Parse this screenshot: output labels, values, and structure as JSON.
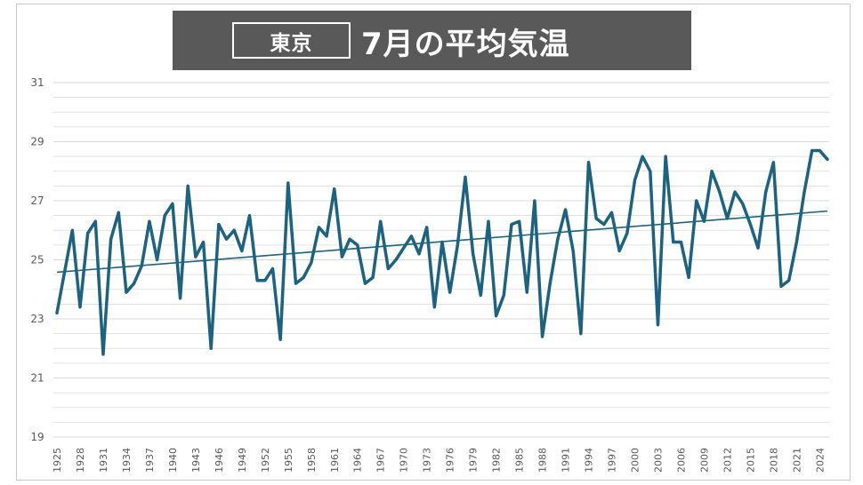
{
  "title": {
    "city": "東京",
    "text": "7月の平均気温"
  },
  "colors": {
    "title_bg": "#595959",
    "line": "#1b6380",
    "trend": "#1b6380",
    "grid": "#d9d9d9",
    "tick_text": "#595959"
  },
  "chart_data": {
    "type": "line",
    "title": "東京 7月の平均気温",
    "xlabel": "",
    "ylabel": "",
    "ylim": [
      19,
      31
    ],
    "y_ticks": [
      19,
      21,
      23,
      25,
      27,
      29,
      31
    ],
    "grid": true,
    "minor_grid_step": 0.5,
    "x_tick_labels": [
      "1925",
      "1928",
      "1931",
      "1934",
      "1937",
      "1940",
      "1943",
      "1946",
      "1949",
      "1952",
      "1955",
      "1958",
      "1961",
      "1964",
      "1967",
      "1970",
      "1973",
      "1976",
      "1979",
      "1982",
      "1985",
      "1988",
      "1991",
      "1994",
      "1997",
      "2000",
      "2003",
      "2006",
      "2009",
      "2012",
      "2015",
      "2018",
      "2021",
      "2024"
    ],
    "x": [
      1925,
      1926,
      1927,
      1928,
      1929,
      1930,
      1931,
      1932,
      1933,
      1934,
      1935,
      1936,
      1937,
      1938,
      1939,
      1940,
      1941,
      1942,
      1943,
      1944,
      1945,
      1946,
      1947,
      1948,
      1949,
      1950,
      1951,
      1952,
      1953,
      1954,
      1955,
      1956,
      1957,
      1958,
      1959,
      1960,
      1961,
      1962,
      1963,
      1964,
      1965,
      1966,
      1967,
      1968,
      1969,
      1970,
      1971,
      1972,
      1973,
      1974,
      1975,
      1976,
      1977,
      1978,
      1979,
      1980,
      1981,
      1982,
      1983,
      1984,
      1985,
      1986,
      1987,
      1988,
      1989,
      1990,
      1991,
      1992,
      1993,
      1994,
      1995,
      1996,
      1997,
      1998,
      1999,
      2000,
      2001,
      2002,
      2003,
      2004,
      2005,
      2006,
      2007,
      2008,
      2009,
      2010,
      2011,
      2012,
      2013,
      2014,
      2015,
      2016,
      2017,
      2018,
      2019,
      2020,
      2021,
      2022,
      2023,
      2024,
      2025
    ],
    "series": [
      {
        "values": [
          23.2,
          24.6,
          26.0,
          23.4,
          25.9,
          26.3,
          21.8,
          25.7,
          26.6,
          23.9,
          24.2,
          24.8,
          26.3,
          25.0,
          26.5,
          26.9,
          23.7,
          27.5,
          25.1,
          25.6,
          22.0,
          26.2,
          25.7,
          26.0,
          25.3,
          26.5,
          24.3,
          24.3,
          24.7,
          22.3,
          27.6,
          24.2,
          24.4,
          24.9,
          26.1,
          25.8,
          27.4,
          25.1,
          25.7,
          25.5,
          24.2,
          24.4,
          26.3,
          24.7,
          25.0,
          25.4,
          25.8,
          25.2,
          26.1,
          23.4,
          25.6,
          23.9,
          25.5,
          27.8,
          25.2,
          23.8,
          26.3,
          23.1,
          23.8,
          26.2,
          26.3,
          23.9,
          27.0,
          22.4,
          24.2,
          25.7,
          26.7,
          25.3,
          22.5,
          28.3,
          26.4,
          26.2,
          26.6,
          25.3,
          25.9,
          27.7,
          28.5,
          28.0,
          22.8,
          28.5,
          25.6,
          25.6,
          24.4,
          27.0,
          26.3,
          28.0,
          27.3,
          26.4,
          27.3,
          26.9,
          26.2,
          25.4,
          27.3,
          28.3,
          24.1,
          24.3,
          25.6,
          27.3,
          28.7,
          28.7,
          28.4
        ]
      },
      {
        "type": "trendline",
        "linear": true,
        "start": 24.58,
        "end": 26.65
      }
    ]
  }
}
